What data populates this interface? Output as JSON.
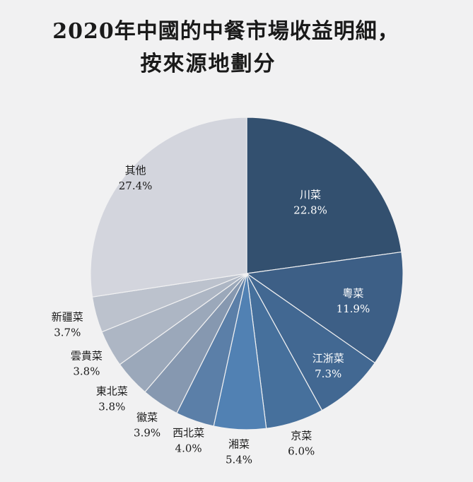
{
  "title": {
    "line1": "2020年中國的中餐市場收益明細，",
    "line2": "按來源地劃分"
  },
  "chart_data": {
    "type": "pie",
    "title": "2020年中國的中餐市場收益明細，按來源地劃分",
    "slices": [
      {
        "label": "川菜",
        "value": 22.8,
        "value_label": "22.8%",
        "color": "#33506f",
        "label_color": "#ffffff"
      },
      {
        "label": "粵菜",
        "value": 11.9,
        "value_label": "11.9%",
        "color": "#3d5f86",
        "label_color": "#ffffff"
      },
      {
        "label": "江浙菜",
        "value": 7.3,
        "value_label": "7.3%",
        "color": "#426892",
        "label_color": "#ffffff"
      },
      {
        "label": "京菜",
        "value": 6.0,
        "value_label": "6.0%",
        "color": "#46709c",
        "label_color": "#1a1a1a"
      },
      {
        "label": "湘菜",
        "value": 5.4,
        "value_label": "5.4%",
        "color": "#5181b3",
        "label_color": "#1a1a1a"
      },
      {
        "label": "西北菜",
        "value": 4.0,
        "value_label": "4.0%",
        "color": "#5b7fa8",
        "label_color": "#1a1a1a"
      },
      {
        "label": "徽菜",
        "value": 3.9,
        "value_label": "3.9%",
        "color": "#8698b0",
        "label_color": "#1a1a1a"
      },
      {
        "label": "東北菜",
        "value": 3.8,
        "value_label": "3.8%",
        "color": "#9ba8ba",
        "label_color": "#1a1a1a"
      },
      {
        "label": "雲貴菜",
        "value": 3.8,
        "value_label": "3.8%",
        "color": "#adb6c4",
        "label_color": "#1a1a1a"
      },
      {
        "label": "新疆菜",
        "value": 3.7,
        "value_label": "3.7%",
        "color": "#bcc2cd",
        "label_color": "#1a1a1a"
      },
      {
        "label": "其他",
        "value": 27.4,
        "value_label": "27.4%",
        "color": "#d3d5dd",
        "label_color": "#1a1a1a"
      }
    ]
  }
}
